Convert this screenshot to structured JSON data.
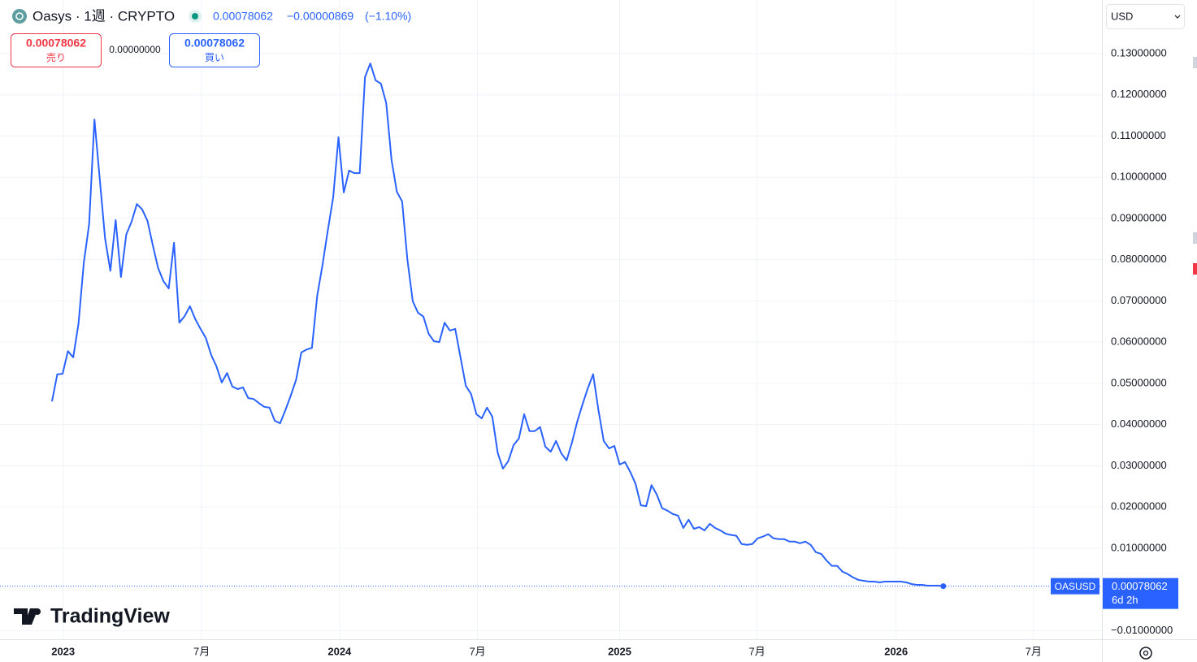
{
  "header": {
    "symbol": "Oasys · 1週 · CRYPTO",
    "price": "0.00078062",
    "change": "−0.00000869",
    "change_pct": "(−1.10%)",
    "sell_price": "0.00078062",
    "sell_label": "売り",
    "spread": "0.00000000",
    "buy_price": "0.00078062",
    "buy_label": "買い",
    "currency": "USD",
    "brand": "TradingView"
  },
  "chart_data": {
    "type": "line",
    "grid": true,
    "color": "#2962ff",
    "symbol": "OASUSD",
    "countdown": "6d 2h",
    "xlim": [
      -9.8,
      197.9
    ],
    "xticks": [
      {
        "value": 2.1,
        "label": "2023"
      },
      {
        "value": 28.2,
        "label": "7月"
      },
      {
        "value": 54.2,
        "label": "2024"
      },
      {
        "value": 80.2,
        "label": "7月"
      },
      {
        "value": 107.0,
        "label": "2025"
      },
      {
        "value": 132.9,
        "label": "7月"
      },
      {
        "value": 159.1,
        "label": "2026"
      },
      {
        "value": 185.0,
        "label": "7月"
      }
    ],
    "ylim": [
      -0.0121,
      0.143
    ],
    "yticks": [
      {
        "value": -0.01,
        "label": "−0.01000000"
      },
      {
        "value": 0.01,
        "label": "0.01000000"
      },
      {
        "value": 0.02,
        "label": "0.02000000"
      },
      {
        "value": 0.03,
        "label": "0.03000000"
      },
      {
        "value": 0.04,
        "label": "0.04000000"
      },
      {
        "value": 0.05,
        "label": "0.05000000"
      },
      {
        "value": 0.06,
        "label": "0.06000000"
      },
      {
        "value": 0.07,
        "label": "0.07000000"
      },
      {
        "value": 0.08,
        "label": "0.08000000"
      },
      {
        "value": 0.09,
        "label": "0.09000000"
      },
      {
        "value": 0.1,
        "label": "0.10000000"
      },
      {
        "value": 0.11,
        "label": "0.11000000"
      },
      {
        "value": 0.12,
        "label": "0.12000000"
      },
      {
        "value": 0.13,
        "label": "0.13000000"
      }
    ],
    "values": [
      0.0456,
      0.0522,
      0.0523,
      0.0578,
      0.0563,
      0.0645,
      0.0793,
      0.0886,
      0.114,
      0.0996,
      0.0852,
      0.0773,
      0.0896,
      0.0758,
      0.0861,
      0.0892,
      0.0935,
      0.0922,
      0.0894,
      0.0835,
      0.078,
      0.0748,
      0.073,
      0.0841,
      0.0647,
      0.0663,
      0.0687,
      0.0656,
      0.0632,
      0.061,
      0.0569,
      0.0541,
      0.0502,
      0.0525,
      0.0492,
      0.0486,
      0.049,
      0.0464,
      0.0462,
      0.0452,
      0.0443,
      0.0441,
      0.0409,
      0.0403,
      0.0435,
      0.047,
      0.0508,
      0.0575,
      0.0582,
      0.0586,
      0.0713,
      0.0788,
      0.0872,
      0.0951,
      0.1097,
      0.0963,
      0.1016,
      0.101,
      0.101,
      0.1243,
      0.1276,
      0.1235,
      0.1227,
      0.118,
      0.1042,
      0.0965,
      0.0941,
      0.0799,
      0.0699,
      0.0671,
      0.0662,
      0.062,
      0.0602,
      0.06,
      0.0647,
      0.0628,
      0.0632,
      0.0563,
      0.0494,
      0.0474,
      0.0425,
      0.0415,
      0.0441,
      0.0419,
      0.0332,
      0.0293,
      0.0311,
      0.035,
      0.0366,
      0.0425,
      0.0384,
      0.0384,
      0.0394,
      0.0346,
      0.0334,
      0.036,
      0.033,
      0.0313,
      0.0356,
      0.0407,
      0.0449,
      0.0488,
      0.0522,
      0.0435,
      0.036,
      0.0342,
      0.0348,
      0.0303,
      0.0309,
      0.0285,
      0.0256,
      0.0204,
      0.0202,
      0.0253,
      0.023,
      0.0197,
      0.0191,
      0.0183,
      0.0179,
      0.0149,
      0.0169,
      0.0147,
      0.0151,
      0.0143,
      0.0159,
      0.0149,
      0.0143,
      0.0135,
      0.0132,
      0.013,
      0.011,
      0.0108,
      0.011,
      0.0124,
      0.0128,
      0.0134,
      0.0124,
      0.0122,
      0.0122,
      0.0116,
      0.0116,
      0.0112,
      0.0116,
      0.0108,
      0.009,
      0.0086,
      0.007,
      0.0057,
      0.0057,
      0.0043,
      0.0037,
      0.0029,
      0.0023,
      0.0021,
      0.0019,
      0.0019,
      0.0017,
      0.0019,
      0.0019,
      0.0019,
      0.0019,
      0.0017,
      0.0013,
      0.0011,
      0.0011,
      0.0009,
      0.0009,
      0.0009,
      0.00078062
    ]
  }
}
